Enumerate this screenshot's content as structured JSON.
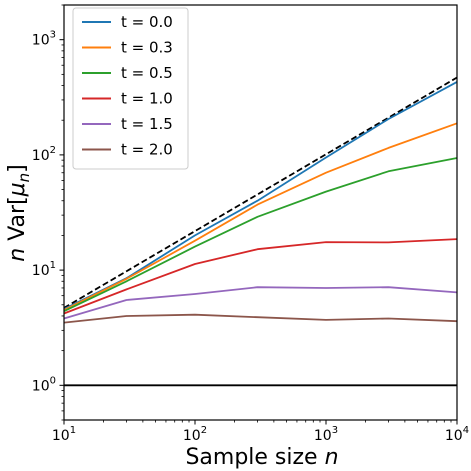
{
  "chart_data": {
    "type": "line",
    "title": "",
    "xlabel": "Sample size n",
    "ylabel": "n Var[μn]",
    "xscale": "log",
    "yscale": "log",
    "xlim": [
      10,
      10000
    ],
    "ylim": [
      0.5,
      2000
    ],
    "grid": false,
    "legend_position": "top-left",
    "x": [
      10,
      30,
      100,
      300,
      1000,
      3000,
      10000
    ],
    "x_ticks": [
      {
        "base": "10",
        "exp": "1",
        "value": 10
      },
      {
        "base": "10",
        "exp": "2",
        "value": 100
      },
      {
        "base": "10",
        "exp": "3",
        "value": 1000
      },
      {
        "base": "10",
        "exp": "4",
        "value": 10000
      }
    ],
    "y_ticks": [
      {
        "base": "10",
        "exp": "0",
        "value": 1
      },
      {
        "base": "10",
        "exp": "1",
        "value": 10
      },
      {
        "base": "10",
        "exp": "2",
        "value": 100
      },
      {
        "base": "10",
        "exp": "3",
        "value": 1000
      }
    ],
    "series": [
      {
        "name": "t = 0.0",
        "color": "#1f77b4",
        "values": [
          4.6,
          8.5,
          20,
          40,
          95,
          205,
          430
        ]
      },
      {
        "name": "t = 0.3",
        "color": "#ff7f0e",
        "values": [
          4.5,
          8.4,
          18,
          37,
          70,
          115,
          188
        ]
      },
      {
        "name": "t = 0.5",
        "color": "#2ca02c",
        "values": [
          4.4,
          8.0,
          16,
          29,
          48,
          72,
          94
        ]
      },
      {
        "name": "t = 1.0",
        "color": "#d62728",
        "values": [
          4.2,
          6.8,
          11.3,
          15.2,
          17.5,
          17.4,
          18.6
        ]
      },
      {
        "name": "t = 1.5",
        "color": "#9467bd",
        "values": [
          3.8,
          5.5,
          6.2,
          7.1,
          7.0,
          7.1,
          6.4
        ]
      },
      {
        "name": "t = 2.0",
        "color": "#8c564b",
        "values": [
          3.5,
          4.0,
          4.1,
          3.9,
          3.7,
          3.8,
          3.6
        ]
      }
    ],
    "reference_lines": [
      {
        "kind": "n",
        "style": "dashed",
        "color": "#000000",
        "x": [
          10,
          10000
        ],
        "values": [
          4.7,
          470
        ]
      },
      {
        "kind": "constant",
        "style": "solid",
        "color": "#000000",
        "x": [
          10,
          10000
        ],
        "values": [
          1,
          1
        ]
      }
    ]
  }
}
